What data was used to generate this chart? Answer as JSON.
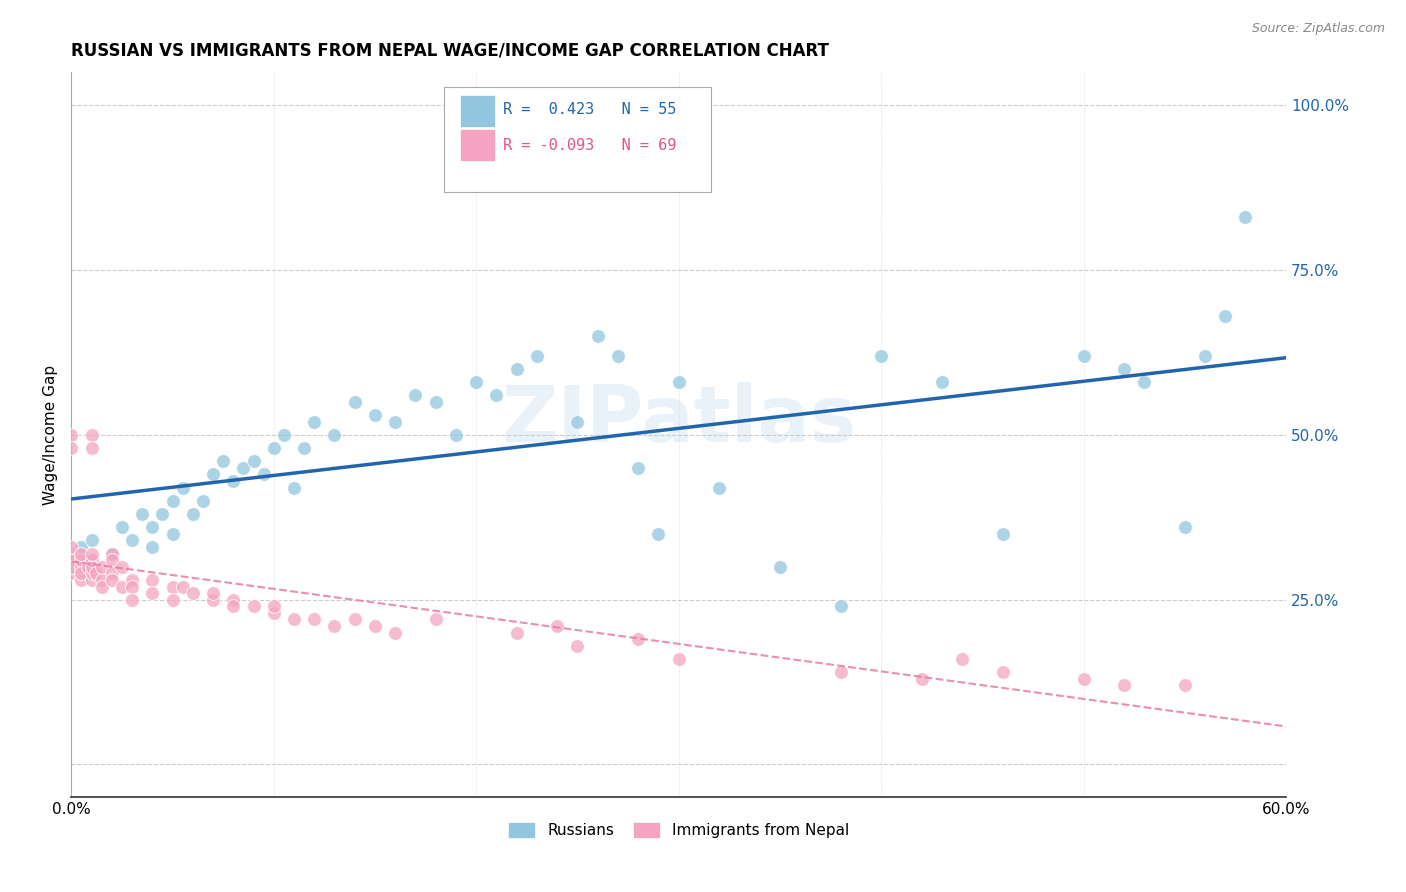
{
  "title": "RUSSIAN VS IMMIGRANTS FROM NEPAL WAGE/INCOME GAP CORRELATION CHART",
  "source": "Source: ZipAtlas.com",
  "ylabel": "Wage/Income Gap",
  "watermark": "ZIPatlas",
  "legend_r1": "R =  0.423",
  "legend_n1": "N = 55",
  "legend_r2": "R = -0.093",
  "legend_n2": "N = 69",
  "blue_color": "#92c5de",
  "pink_color": "#f4a4c0",
  "blue_line_color": "#2166ac",
  "pink_line_color": "#e87aaa",
  "grid_color": "#cccccc",
  "background_color": "#ffffff",
  "russians_label": "Russians",
  "nepal_label": "Immigrants from Nepal",
  "xlim": [
    0.0,
    0.6
  ],
  "ylim": [
    -0.05,
    1.05
  ],
  "yticks": [
    0.25,
    0.5,
    0.75,
    1.0
  ],
  "ytick_labels": [
    "25.0%",
    "50.0%",
    "75.0%",
    "100.0%"
  ],
  "blue_x": [
    0.005,
    0.01,
    0.02,
    0.025,
    0.03,
    0.035,
    0.04,
    0.04,
    0.045,
    0.05,
    0.05,
    0.055,
    0.06,
    0.065,
    0.07,
    0.075,
    0.08,
    0.085,
    0.09,
    0.095,
    0.1,
    0.105,
    0.11,
    0.115,
    0.12,
    0.13,
    0.14,
    0.15,
    0.16,
    0.17,
    0.18,
    0.19,
    0.2,
    0.21,
    0.22,
    0.23,
    0.25,
    0.26,
    0.27,
    0.28,
    0.29,
    0.3,
    0.32,
    0.35,
    0.38,
    0.4,
    0.43,
    0.46,
    0.5,
    0.52,
    0.53,
    0.55,
    0.56,
    0.57,
    0.58
  ],
  "blue_y": [
    0.33,
    0.34,
    0.32,
    0.36,
    0.34,
    0.38,
    0.33,
    0.36,
    0.38,
    0.35,
    0.4,
    0.42,
    0.38,
    0.4,
    0.44,
    0.46,
    0.43,
    0.45,
    0.46,
    0.44,
    0.48,
    0.5,
    0.42,
    0.48,
    0.52,
    0.5,
    0.55,
    0.53,
    0.52,
    0.56,
    0.55,
    0.5,
    0.58,
    0.56,
    0.6,
    0.62,
    0.52,
    0.65,
    0.62,
    0.45,
    0.35,
    0.58,
    0.42,
    0.3,
    0.24,
    0.62,
    0.58,
    0.35,
    0.62,
    0.6,
    0.58,
    0.36,
    0.62,
    0.68,
    0.83
  ],
  "pink_x": [
    0.0,
    0.0,
    0.0,
    0.0,
    0.0,
    0.0,
    0.005,
    0.005,
    0.005,
    0.005,
    0.005,
    0.008,
    0.01,
    0.01,
    0.01,
    0.01,
    0.01,
    0.01,
    0.01,
    0.01,
    0.012,
    0.015,
    0.015,
    0.015,
    0.02,
    0.02,
    0.02,
    0.02,
    0.025,
    0.025,
    0.03,
    0.03,
    0.03,
    0.04,
    0.04,
    0.05,
    0.05,
    0.055,
    0.06,
    0.07,
    0.07,
    0.08,
    0.08,
    0.09,
    0.1,
    0.1,
    0.11,
    0.12,
    0.13,
    0.14,
    0.15,
    0.16,
    0.18,
    0.22,
    0.24,
    0.25,
    0.28,
    0.3,
    0.38,
    0.42,
    0.44,
    0.46,
    0.5,
    0.52,
    0.55,
    0.0,
    0.0,
    0.01,
    0.01
  ],
  "pink_y": [
    0.32,
    0.3,
    0.31,
    0.29,
    0.33,
    0.3,
    0.28,
    0.3,
    0.31,
    0.29,
    0.32,
    0.3,
    0.3,
    0.31,
    0.28,
    0.3,
    0.29,
    0.31,
    0.3,
    0.32,
    0.29,
    0.28,
    0.3,
    0.27,
    0.32,
    0.31,
    0.29,
    0.28,
    0.27,
    0.3,
    0.28,
    0.27,
    0.25,
    0.28,
    0.26,
    0.27,
    0.25,
    0.27,
    0.26,
    0.25,
    0.26,
    0.25,
    0.24,
    0.24,
    0.23,
    0.24,
    0.22,
    0.22,
    0.21,
    0.22,
    0.21,
    0.2,
    0.22,
    0.2,
    0.21,
    0.18,
    0.19,
    0.16,
    0.14,
    0.13,
    0.16,
    0.14,
    0.13,
    0.12,
    0.12,
    0.5,
    0.48,
    0.5,
    0.48
  ]
}
